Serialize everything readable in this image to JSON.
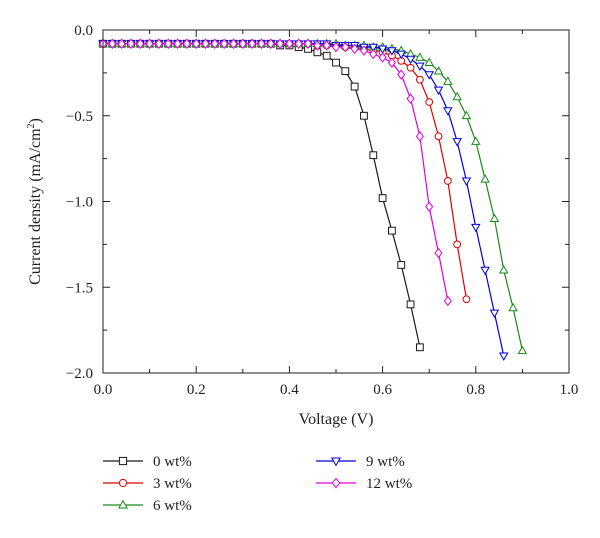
{
  "chart_data": {
    "type": "line",
    "xlabel": "Voltage (V)",
    "ylabel": "Current density (mA/cm",
    "ylabel_sup": "2",
    "ylabel_close": ")",
    "xlim": [
      0.0,
      1.0
    ],
    "ylim": [
      -2.0,
      0.0
    ],
    "x_ticks": [
      "0.0",
      "0.2",
      "0.4",
      "0.6",
      "0.8",
      "1.0"
    ],
    "y_ticks": [
      "0.0",
      "-0.5",
      "-1.0",
      "-1.5",
      "-2.0"
    ],
    "grid": false,
    "legend_position": "bottom",
    "series": [
      {
        "name": "0 wt%",
        "color": "#1a1a1a",
        "marker": "square",
        "x": [
          0.0,
          0.02,
          0.04,
          0.06,
          0.08,
          0.1,
          0.12,
          0.14,
          0.16,
          0.18,
          0.2,
          0.22,
          0.24,
          0.26,
          0.28,
          0.3,
          0.32,
          0.34,
          0.36,
          0.38,
          0.4,
          0.42,
          0.44,
          0.46,
          0.48,
          0.5,
          0.52,
          0.54,
          0.56,
          0.58,
          0.6,
          0.62,
          0.64,
          0.66,
          0.68
        ],
        "y": [
          -0.08,
          -0.08,
          -0.08,
          -0.08,
          -0.08,
          -0.08,
          -0.08,
          -0.08,
          -0.08,
          -0.08,
          -0.08,
          -0.08,
          -0.08,
          -0.08,
          -0.08,
          -0.08,
          -0.08,
          -0.08,
          -0.08,
          -0.09,
          -0.09,
          -0.1,
          -0.11,
          -0.13,
          -0.15,
          -0.19,
          -0.24,
          -0.33,
          -0.5,
          -0.73,
          -0.98,
          -1.17,
          -1.37,
          -1.6,
          -1.85
        ]
      },
      {
        "name": "3 wt%",
        "color": "#e00000",
        "marker": "circle",
        "x": [
          0.0,
          0.02,
          0.04,
          0.06,
          0.08,
          0.1,
          0.12,
          0.14,
          0.16,
          0.18,
          0.2,
          0.22,
          0.24,
          0.26,
          0.28,
          0.3,
          0.32,
          0.34,
          0.36,
          0.38,
          0.4,
          0.42,
          0.44,
          0.46,
          0.48,
          0.5,
          0.52,
          0.54,
          0.56,
          0.58,
          0.6,
          0.62,
          0.64,
          0.66,
          0.68,
          0.7,
          0.72,
          0.74,
          0.76,
          0.78
        ],
        "y": [
          -0.08,
          -0.08,
          -0.08,
          -0.08,
          -0.08,
          -0.08,
          -0.08,
          -0.08,
          -0.08,
          -0.08,
          -0.08,
          -0.08,
          -0.08,
          -0.08,
          -0.08,
          -0.08,
          -0.08,
          -0.08,
          -0.08,
          -0.08,
          -0.08,
          -0.08,
          -0.08,
          -0.09,
          -0.09,
          -0.09,
          -0.1,
          -0.1,
          -0.11,
          -0.12,
          -0.13,
          -0.15,
          -0.18,
          -0.22,
          -0.29,
          -0.42,
          -0.62,
          -0.88,
          -1.25,
          -1.57
        ]
      },
      {
        "name": "6 wt%",
        "color": "#1a8a1a",
        "marker": "triangle-up",
        "x": [
          0.0,
          0.02,
          0.04,
          0.06,
          0.08,
          0.1,
          0.12,
          0.14,
          0.16,
          0.18,
          0.2,
          0.22,
          0.24,
          0.26,
          0.28,
          0.3,
          0.32,
          0.34,
          0.36,
          0.38,
          0.4,
          0.42,
          0.44,
          0.46,
          0.48,
          0.5,
          0.52,
          0.54,
          0.56,
          0.58,
          0.6,
          0.62,
          0.64,
          0.66,
          0.68,
          0.7,
          0.72,
          0.74,
          0.76,
          0.78,
          0.8,
          0.82,
          0.84,
          0.86,
          0.88,
          0.9
        ],
        "y": [
          -0.08,
          -0.08,
          -0.08,
          -0.08,
          -0.08,
          -0.08,
          -0.08,
          -0.08,
          -0.08,
          -0.08,
          -0.08,
          -0.08,
          -0.08,
          -0.08,
          -0.08,
          -0.08,
          -0.08,
          -0.08,
          -0.08,
          -0.08,
          -0.08,
          -0.08,
          -0.08,
          -0.08,
          -0.08,
          -0.08,
          -0.09,
          -0.09,
          -0.09,
          -0.1,
          -0.1,
          -0.11,
          -0.12,
          -0.14,
          -0.16,
          -0.19,
          -0.24,
          -0.3,
          -0.39,
          -0.5,
          -0.65,
          -0.87,
          -1.1,
          -1.4,
          -1.62,
          -1.87
        ]
      },
      {
        "name": "9 wt%",
        "color": "#0000dd",
        "marker": "triangle-down",
        "x": [
          0.0,
          0.02,
          0.04,
          0.06,
          0.08,
          0.1,
          0.12,
          0.14,
          0.16,
          0.18,
          0.2,
          0.22,
          0.24,
          0.26,
          0.28,
          0.3,
          0.32,
          0.34,
          0.36,
          0.38,
          0.4,
          0.42,
          0.44,
          0.46,
          0.48,
          0.5,
          0.52,
          0.54,
          0.56,
          0.58,
          0.6,
          0.62,
          0.64,
          0.66,
          0.68,
          0.7,
          0.72,
          0.74,
          0.76,
          0.78,
          0.8,
          0.82,
          0.84,
          0.86
        ],
        "y": [
          -0.08,
          -0.08,
          -0.08,
          -0.08,
          -0.08,
          -0.08,
          -0.08,
          -0.08,
          -0.08,
          -0.08,
          -0.08,
          -0.08,
          -0.08,
          -0.08,
          -0.08,
          -0.08,
          -0.08,
          -0.08,
          -0.08,
          -0.08,
          -0.08,
          -0.08,
          -0.08,
          -0.08,
          -0.08,
          -0.09,
          -0.09,
          -0.09,
          -0.1,
          -0.1,
          -0.11,
          -0.12,
          -0.14,
          -0.17,
          -0.21,
          -0.26,
          -0.35,
          -0.47,
          -0.65,
          -0.88,
          -1.15,
          -1.4,
          -1.65,
          -1.9
        ]
      },
      {
        "name": "12 wt%",
        "color": "#e000e0",
        "marker": "diamond",
        "x": [
          0.0,
          0.02,
          0.04,
          0.06,
          0.08,
          0.1,
          0.12,
          0.14,
          0.16,
          0.18,
          0.2,
          0.22,
          0.24,
          0.26,
          0.28,
          0.3,
          0.32,
          0.34,
          0.36,
          0.38,
          0.4,
          0.42,
          0.44,
          0.46,
          0.48,
          0.5,
          0.52,
          0.54,
          0.56,
          0.58,
          0.6,
          0.62,
          0.64,
          0.66,
          0.68,
          0.7,
          0.72,
          0.74
        ],
        "y": [
          -0.08,
          -0.08,
          -0.08,
          -0.08,
          -0.08,
          -0.08,
          -0.08,
          -0.08,
          -0.08,
          -0.08,
          -0.08,
          -0.08,
          -0.08,
          -0.08,
          -0.08,
          -0.08,
          -0.08,
          -0.08,
          -0.08,
          -0.08,
          -0.08,
          -0.08,
          -0.08,
          -0.09,
          -0.09,
          -0.1,
          -0.1,
          -0.11,
          -0.12,
          -0.14,
          -0.16,
          -0.19,
          -0.26,
          -0.4,
          -0.62,
          -1.03,
          -1.3,
          -1.58
        ]
      }
    ]
  }
}
